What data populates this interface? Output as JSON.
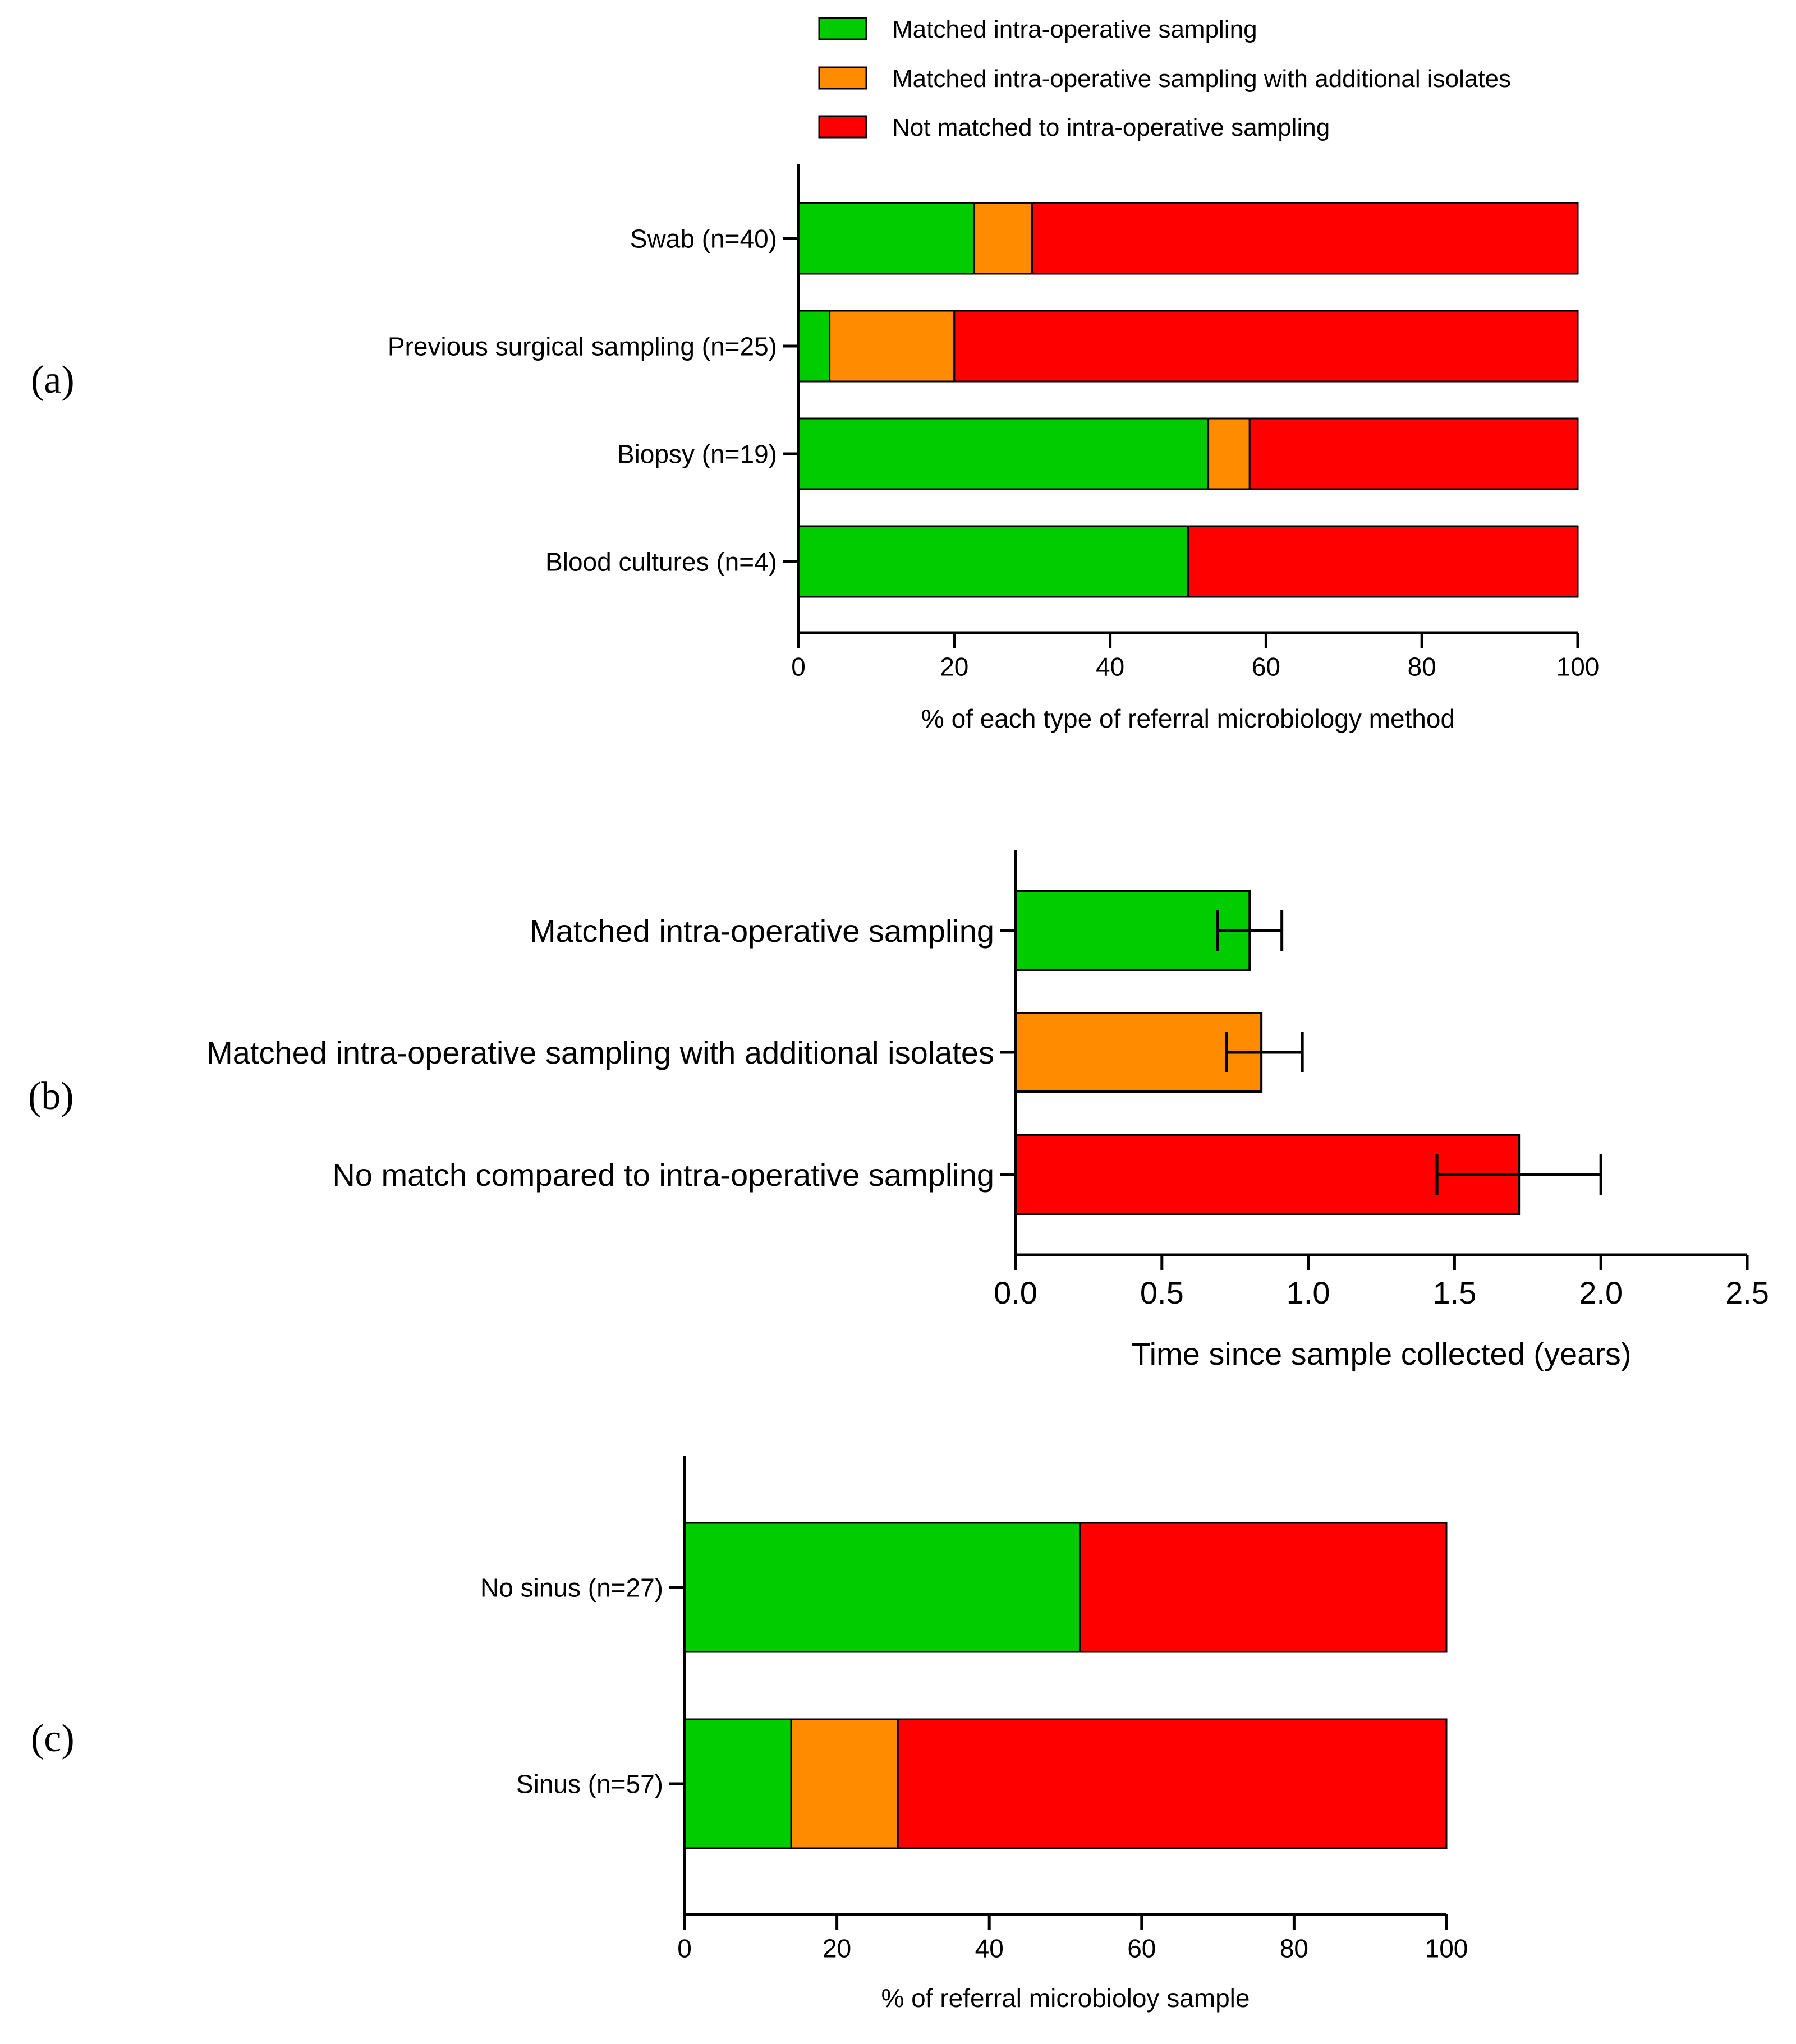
{
  "colors": {
    "matched": "#00CC00",
    "matched_additional": "#FF8C00",
    "not_matched": "#FF0000",
    "axis": "#000000",
    "bar_edge": "#000000"
  },
  "legend": {
    "items": [
      {
        "label": "Matched intra-operative sampling",
        "color": "#00CC00"
      },
      {
        "label": "Matched intra-operative sampling with additional isolates",
        "color": "#FF8C00"
      },
      {
        "label": "Not matched to intra-operative sampling",
        "color": "#FF0000"
      }
    ]
  },
  "panel_labels": [
    "(a)",
    "(b)",
    "(c)"
  ],
  "chart_data": [
    {
      "panel": "a",
      "type": "bar",
      "orientation": "horizontal",
      "stacked": true,
      "categories": [
        "Swab (n=40)",
        "Previous surgical sampling (n=25)",
        "Biopsy (n=19)",
        "Blood cultures (n=4)"
      ],
      "series": [
        {
          "name": "Matched intra-operative sampling",
          "values": [
            22.5,
            4,
            52.6,
            50
          ]
        },
        {
          "name": "Matched intra-operative sampling with additional isolates",
          "values": [
            7.5,
            16,
            5.3,
            0
          ]
        },
        {
          "name": "Not matched to intra-operative sampling",
          "values": [
            70,
            80,
            42.1,
            50
          ]
        }
      ],
      "xlabel": "% of each type of referral microbiology method",
      "ylabel": "",
      "xlim": [
        0,
        100
      ],
      "xticks": [
        "0",
        "20",
        "40",
        "60",
        "80",
        "100"
      ],
      "grid": false,
      "legend": "top"
    },
    {
      "panel": "b",
      "type": "bar",
      "orientation": "horizontal",
      "stacked": false,
      "categories": [
        "Matched intra-operative sampling",
        "Matched intra-operative sampling with additional isolates",
        "No match compared to intra-operative sampling"
      ],
      "values": [
        0.8,
        0.84,
        1.72
      ],
      "error_low": [
        0.69,
        0.72,
        1.44
      ],
      "error_high": [
        0.91,
        0.98,
        2.0
      ],
      "xlabel": "Time since sample collected (years)",
      "ylabel": "",
      "xlim": [
        0,
        2.5
      ],
      "xticks": [
        "0.0",
        "0.5",
        "1.0",
        "1.5",
        "2.0",
        "2.5"
      ],
      "grid": false
    },
    {
      "panel": "c",
      "type": "bar",
      "orientation": "horizontal",
      "stacked": true,
      "categories": [
        "No sinus (n=27)",
        "Sinus (n=57)"
      ],
      "series": [
        {
          "name": "Matched intra-operative sampling",
          "values": [
            51.9,
            14
          ]
        },
        {
          "name": "Matched intra-operative sampling with additional isolates",
          "values": [
            0,
            14
          ]
        },
        {
          "name": "Not matched to intra-operative sampling",
          "values": [
            48.1,
            72
          ]
        }
      ],
      "xlabel": "% of referral microbioloy sample",
      "ylabel": "",
      "xlim": [
        0,
        100
      ],
      "xticks": [
        "0",
        "20",
        "40",
        "60",
        "80",
        "100"
      ],
      "grid": false
    }
  ]
}
